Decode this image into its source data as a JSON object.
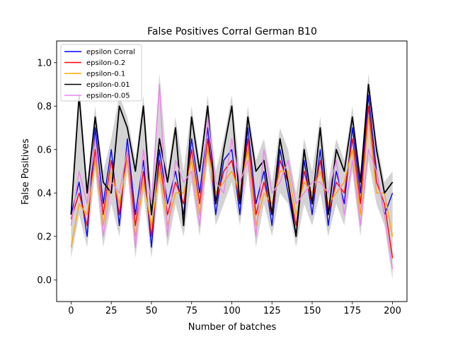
{
  "chart_data": {
    "type": "line",
    "title": "False Positives Corral German B10",
    "xlabel": "Number of batches",
    "ylabel": "False Positives",
    "xlim": [
      -9,
      209
    ],
    "ylim": [
      -0.1,
      1.1
    ],
    "xticks": [
      0,
      25,
      50,
      75,
      100,
      125,
      150,
      175,
      200
    ],
    "yticks": [
      0.0,
      0.2,
      0.4,
      0.6,
      0.8,
      1.0
    ],
    "xtick_labels": [
      "0",
      "25",
      "50",
      "75",
      "100",
      "125",
      "150",
      "175",
      "200"
    ],
    "ytick_labels": [
      "0.0",
      "0.2",
      "0.4",
      "0.6",
      "0.8",
      "1.0"
    ],
    "legend_position": "top-left",
    "x": [
      0,
      5,
      10,
      15,
      20,
      25,
      30,
      35,
      40,
      45,
      50,
      55,
      60,
      65,
      70,
      75,
      80,
      85,
      90,
      95,
      100,
      105,
      110,
      115,
      120,
      125,
      130,
      135,
      140,
      145,
      150,
      155,
      160,
      165,
      170,
      175,
      180,
      185,
      190,
      195,
      200
    ],
    "series": [
      {
        "name": "epsilon Corral",
        "color": "#0000ff",
        "values": [
          0.3,
          0.45,
          0.2,
          0.7,
          0.35,
          0.6,
          0.25,
          0.65,
          0.3,
          0.55,
          0.15,
          0.6,
          0.35,
          0.5,
          0.3,
          0.65,
          0.4,
          0.7,
          0.3,
          0.55,
          0.6,
          0.3,
          0.7,
          0.35,
          0.5,
          0.25,
          0.6,
          0.4,
          0.2,
          0.55,
          0.3,
          0.6,
          0.25,
          0.5,
          0.35,
          0.7,
          0.4,
          0.85,
          0.5,
          0.3,
          0.4
        ]
      },
      {
        "name": "epsilon-0.2",
        "color": "#ff0000",
        "values": [
          0.28,
          0.4,
          0.25,
          0.6,
          0.3,
          0.55,
          0.3,
          0.6,
          0.25,
          0.5,
          0.2,
          0.55,
          0.3,
          0.45,
          0.35,
          0.6,
          0.35,
          0.65,
          0.35,
          0.5,
          0.55,
          0.35,
          0.65,
          0.3,
          0.45,
          0.3,
          0.55,
          0.45,
          0.25,
          0.5,
          0.35,
          0.55,
          0.3,
          0.45,
          0.4,
          0.65,
          0.35,
          0.8,
          0.45,
          0.35,
          0.1
        ]
      },
      {
        "name": "epsilon-0.1",
        "color": "#ffa500",
        "values": [
          0.15,
          0.35,
          0.3,
          0.55,
          0.25,
          0.5,
          0.35,
          0.55,
          0.2,
          0.45,
          0.25,
          0.5,
          0.25,
          0.4,
          0.4,
          0.55,
          0.3,
          0.6,
          0.4,
          0.45,
          0.5,
          0.4,
          0.6,
          0.25,
          0.4,
          0.35,
          0.5,
          0.5,
          0.3,
          0.45,
          0.4,
          0.5,
          0.35,
          0.4,
          0.45,
          0.6,
          0.3,
          0.75,
          0.4,
          0.4,
          0.2
        ]
      },
      {
        "name": "epsilon-0.01",
        "color": "#000000",
        "values": [
          0.3,
          0.85,
          0.4,
          0.75,
          0.45,
          0.4,
          0.8,
          0.7,
          0.5,
          0.8,
          0.3,
          0.65,
          0.45,
          0.7,
          0.25,
          0.75,
          0.5,
          0.8,
          0.35,
          0.6,
          0.8,
          0.35,
          0.75,
          0.5,
          0.55,
          0.3,
          0.65,
          0.45,
          0.2,
          0.6,
          0.35,
          0.7,
          0.3,
          0.6,
          0.5,
          0.75,
          0.45,
          0.9,
          0.6,
          0.4,
          0.45
        ]
      },
      {
        "name": "epsilon-0.05",
        "color": "#ee82ee",
        "values": [
          0.25,
          0.5,
          0.35,
          0.65,
          0.2,
          0.45,
          0.4,
          0.6,
          0.15,
          0.6,
          0.35,
          0.9,
          0.2,
          0.55,
          0.45,
          0.5,
          0.25,
          0.75,
          0.45,
          0.4,
          0.65,
          0.45,
          0.55,
          0.2,
          0.6,
          0.4,
          0.45,
          0.55,
          0.35,
          0.4,
          0.45,
          0.45,
          0.4,
          0.55,
          0.3,
          0.55,
          0.25,
          0.6,
          0.5,
          0.3,
          0.05
        ]
      }
    ]
  }
}
